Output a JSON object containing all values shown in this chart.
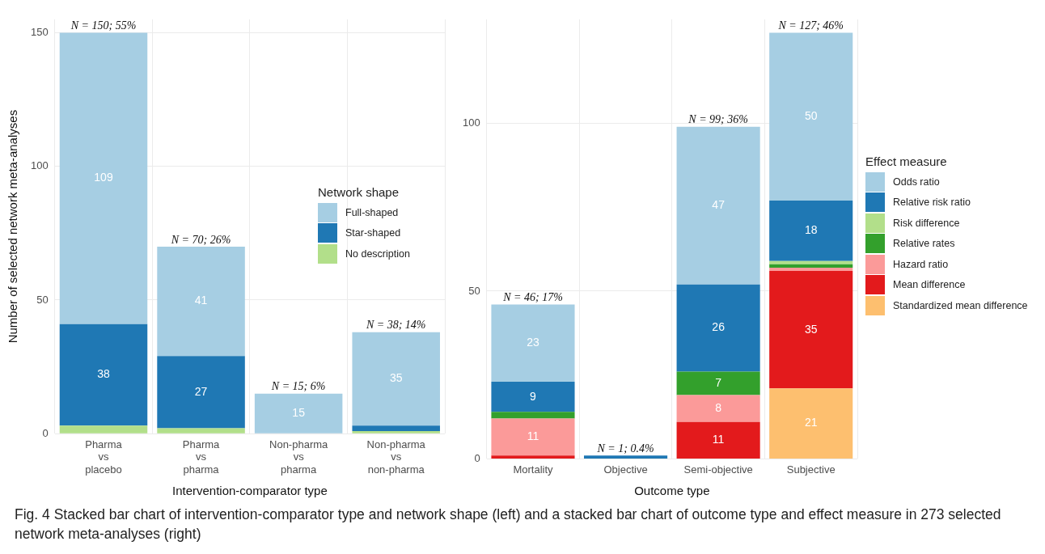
{
  "chart_data": [
    {
      "type": "bar",
      "stacked": true,
      "xlabel": "Intervention-comparator type",
      "ylabel": "Number of selected network meta-analyses",
      "legend_title": "Network shape",
      "legend": "right",
      "grid": true,
      "categories": [
        "Pharma vs placebo",
        "Pharma vs pharma",
        "Non-pharma vs pharma",
        "Non-pharma vs non-pharma"
      ],
      "ylim": [
        0,
        155
      ],
      "yticks": [
        0,
        50,
        100,
        150
      ],
      "series": [
        {
          "name": "No description",
          "color": "#b2df8a",
          "values": [
            3,
            2,
            0,
            1
          ],
          "value_labels": [
            null,
            null,
            null,
            null
          ]
        },
        {
          "name": "Star-shaped",
          "color": "#1f78b4",
          "values": [
            38,
            27,
            0,
            2
          ],
          "value_labels": [
            "38",
            "27",
            null,
            null
          ]
        },
        {
          "name": "Full-shaped",
          "color": "#a6cee3",
          "values": [
            109,
            41,
            15,
            35
          ],
          "value_labels": [
            "109",
            "41",
            "15",
            "35"
          ]
        }
      ],
      "totals": [
        "N = 150; 55%",
        "N = 70; 26%",
        "N = 15; 6%",
        "N = 38; 14%"
      ],
      "annotations": [
        "Fig. 4 Stacked bar chart of intervention-comparator type and network shape (left) and a stacked bar chart of outcome type and effect measure in 273 selected network meta-analyses (right)"
      ]
    },
    {
      "type": "bar",
      "stacked": true,
      "xlabel": "Outcome type",
      "legend_title": "Effect measure",
      "legend": "right",
      "grid": true,
      "categories": [
        "Mortality",
        "Objective",
        "Semi-objective",
        "Subjective"
      ],
      "ylim": [
        0,
        131
      ],
      "yticks": [
        0,
        50,
        100
      ],
      "series": [
        {
          "name": "Standardized mean difference",
          "color": "#fdbf6f",
          "values": [
            0,
            0,
            0,
            21
          ],
          "value_labels": [
            null,
            null,
            null,
            "21"
          ]
        },
        {
          "name": "Mean difference",
          "color": "#e31a1c",
          "values": [
            1,
            0,
            11,
            35
          ],
          "value_labels": [
            null,
            null,
            "11",
            "35"
          ]
        },
        {
          "name": "Hazard ratio",
          "color": "#fb9a99",
          "values": [
            11,
            0,
            8,
            1
          ],
          "value_labels": [
            "11",
            null,
            "8",
            null
          ]
        },
        {
          "name": "Relative rates",
          "color": "#33a02c",
          "values": [
            2,
            0,
            7,
            1
          ],
          "value_labels": [
            null,
            null,
            "7",
            null
          ]
        },
        {
          "name": "Risk difference",
          "color": "#b2df8a",
          "values": [
            0,
            0,
            0,
            1
          ],
          "value_labels": [
            null,
            null,
            null,
            null
          ]
        },
        {
          "name": "Relative risk ratio",
          "color": "#1f78b4",
          "values": [
            9,
            1,
            26,
            18
          ],
          "value_labels": [
            "9",
            null,
            "26",
            "18"
          ]
        },
        {
          "name": "Odds ratio",
          "color": "#a6cee3",
          "values": [
            23,
            0,
            47,
            50
          ],
          "value_labels": [
            "23",
            null,
            "47",
            "50"
          ]
        }
      ],
      "totals": [
        "N = 46; 17%",
        "N = 1; 0.4%",
        "N = 99; 36%",
        "N = 127; 46%"
      ]
    }
  ]
}
